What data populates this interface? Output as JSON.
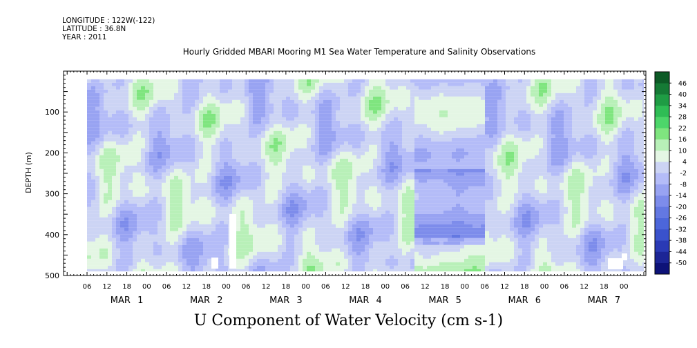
{
  "header": {
    "longitude": "LONGITUDE : 122W(-122)",
    "latitude": "LATITUDE : 36.8N",
    "year": "YEAR : 2011"
  },
  "chart_data": {
    "type": "heatmap",
    "title": "Hourly Gridded MBARI Mooring M1 Sea Water Temperature and Salinity Observations",
    "variable_label": "U Component of Water Velocity (cm s-1)",
    "ylabel": "DEPTH (m)",
    "ylim": [
      500,
      0
    ],
    "yticks": [
      100,
      200,
      300,
      400,
      500
    ],
    "data_depth_range": [
      20,
      490
    ],
    "x_range_hours": [
      0,
      168
    ],
    "x_hour_tick_labels": [
      "06",
      "12",
      "18",
      "00",
      "06",
      "12",
      "18",
      "00",
      "06",
      "12",
      "18",
      "00",
      "06",
      "12",
      "18",
      "00",
      "06",
      "12",
      "18",
      "00",
      "06",
      "12",
      "18",
      "00",
      "06",
      "12",
      "18",
      "00"
    ],
    "x_day_labels": [
      "MAR 1",
      "MAR 2",
      "MAR 3",
      "MAR 4",
      "MAR 5",
      "MAR 6",
      "MAR 7"
    ],
    "colorbar": {
      "levels": [
        -50,
        -44,
        -38,
        -32,
        -26,
        -20,
        -14,
        -8,
        -2,
        4,
        10,
        16,
        22,
        28,
        34,
        40,
        46
      ],
      "colors": [
        "#0d1278",
        "#1c2596",
        "#2a3ab5",
        "#3a52cc",
        "#4c66da",
        "#6378e2",
        "#7d8ceb",
        "#98a3f2",
        "#b4bcf8",
        "#ccd4f4",
        "#e4f6e4",
        "#b8f0b8",
        "#7fe57f",
        "#4dd66a",
        "#2fbd55",
        "#1f9c44",
        "#157a35",
        "#0d5a26"
      ],
      "tick_labels": [
        "46",
        "40",
        "34",
        "28",
        "22",
        "16",
        "10",
        "4",
        "-2",
        "-8",
        "-14",
        "-20",
        "-26",
        "-32",
        "-38",
        "-44",
        "-50"
      ]
    },
    "grid": false
  }
}
